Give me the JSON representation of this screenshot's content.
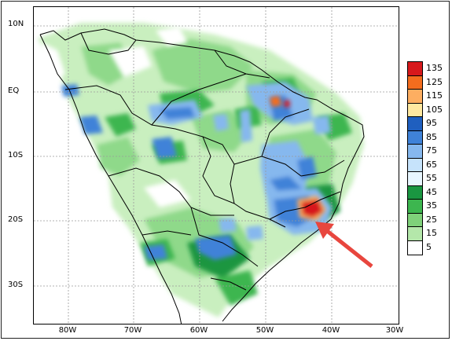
{
  "lat_ticks": [
    "10N",
    "EQ",
    "10S",
    "20S",
    "30S"
  ],
  "lon_ticks": [
    "80W",
    "70W",
    "60W",
    "50W",
    "40W",
    "30W"
  ],
  "legend": {
    "labels": [
      "135",
      "125",
      "115",
      "105",
      "95",
      "85",
      "75",
      "65",
      "55",
      "45",
      "35",
      "25",
      "15",
      "5"
    ],
    "colors": [
      "#d7191c",
      "#f46d1e",
      "#fdae61",
      "#ffe8a0",
      "#1f5fbf",
      "#3f82d8",
      "#86b8ee",
      "#c6e3fb",
      "#e8f6ff",
      "#1a9641",
      "#3db64f",
      "#7fd17a",
      "#b4e7aa",
      "#ffffff"
    ]
  },
  "colors": {
    "border": "#000000",
    "grid": "#9a9a9a",
    "arrow": "#e8463e"
  }
}
